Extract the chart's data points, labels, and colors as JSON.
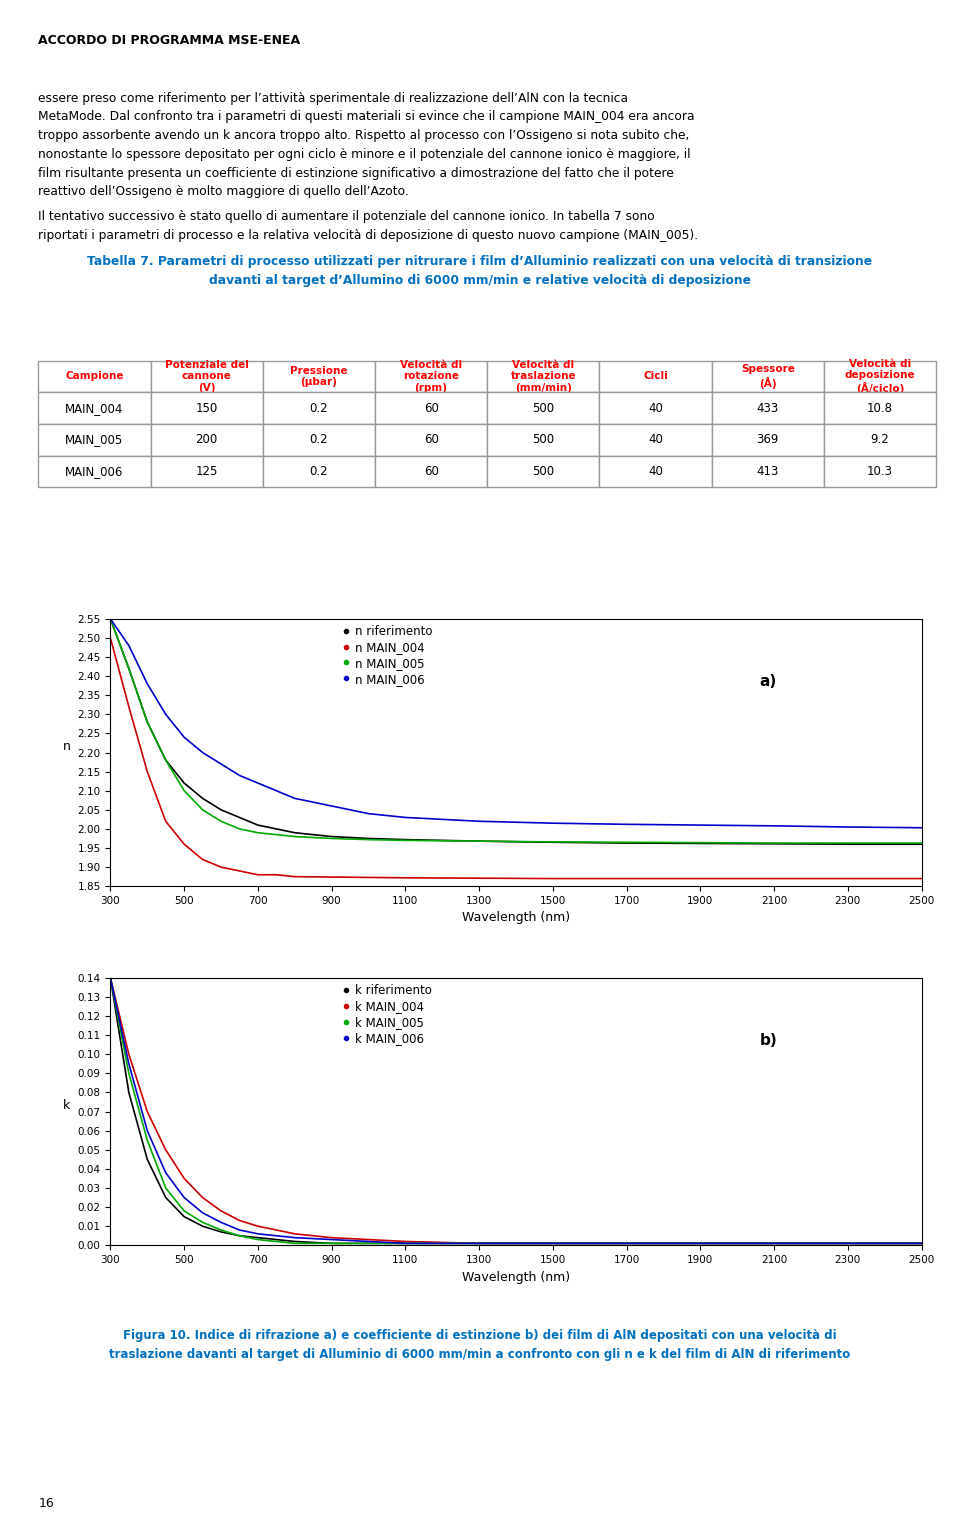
{
  "header": "ACCORDO DI PROGRAMMA MSE-ENEA",
  "paragraph1_lines": [
    "essere preso come riferimento per l’attività sperimentale di realizzazione dell’AlN con la tecnica",
    "MetaMode. Dal confronto tra i parametri di questi materiali si evince che il campione MAIN_004 era ancora",
    "troppo assorbente avendo un k ancora troppo alto. Rispetto al processo con l’Ossigeno si nota subito che,",
    "nonostante lo spessore depositato per ogni ciclo è minore e il potenziale del cannone ionico è maggiore, il",
    "film risultante presenta un coefficiente di estinzione significativo a dimostrazione del fatto che il potere",
    "reattivo dell’Ossigeno è molto maggiore di quello dell’Azoto."
  ],
  "paragraph2_lines": [
    "Il tentativo successivo è stato quello di aumentare il potenziale del cannone ionico. In tabella 7 sono",
    "riportati i parametri di processo e la relativa velocità di deposizione di questo nuovo campione (MAIN_005)."
  ],
  "table_title_lines": [
    "Tabella 7. Parametri di processo utilizzati per nitrurare i film d’Alluminio realizzati con una velocità di transizione",
    "davanti al target d’Allumino di 6000 mm/min e relative velocità di deposizione"
  ],
  "table_col_headers": [
    "Campione",
    "Potenziale del\ncannone\n(V)",
    "Pressione\n(μbar)",
    "Velocità di\nrotazione\n(rpm)",
    "Velocità di\ntraslazione\n(mm/min)",
    "Cicli",
    "Spessore\n(Å)",
    "Velocità di\ndeposizione\n(Å/ciclo)"
  ],
  "table_data": [
    [
      "MAIN_004",
      "150",
      "0.2",
      "60",
      "500",
      "40",
      "433",
      "10.8"
    ],
    [
      "MAIN_005",
      "200",
      "0.2",
      "60",
      "500",
      "40",
      "369",
      "9.2"
    ],
    [
      "MAIN_006",
      "125",
      "0.2",
      "60",
      "500",
      "40",
      "413",
      "10.3"
    ]
  ],
  "fig_caption_lines": [
    "Figura 10. Indice di rifrazione a) e coefficiente di estinzione b) dei film di AlN depositati con una velocità di",
    "traslazione davanti al target di Alluminio di 6000 mm/min a confronto con gli n e k del film di AlN di riferimento"
  ],
  "page_number": "16",
  "header_color": "#000000",
  "table_header_color": "#ff0000",
  "table_title_color": "#0070c0",
  "fig_caption_color": "#0070c0",
  "wavelength_n": [
    300,
    350,
    400,
    450,
    500,
    550,
    600,
    650,
    700,
    750,
    800,
    900,
    1000,
    1100,
    1300,
    1500,
    1700,
    1900,
    2100,
    2300,
    2500
  ],
  "n_riferimento": [
    2.55,
    2.42,
    2.28,
    2.18,
    2.12,
    2.08,
    2.05,
    2.03,
    2.01,
    2.0,
    1.99,
    1.98,
    1.975,
    1.972,
    1.968,
    1.965,
    1.963,
    1.962,
    1.961,
    1.96,
    1.96
  ],
  "n_main004": [
    2.5,
    2.32,
    2.15,
    2.02,
    1.96,
    1.92,
    1.9,
    1.89,
    1.88,
    1.88,
    1.875,
    1.874,
    1.873,
    1.872,
    1.871,
    1.87,
    1.87,
    1.87,
    1.87,
    1.87,
    1.87
  ],
  "n_main005": [
    2.55,
    2.42,
    2.28,
    2.18,
    2.1,
    2.05,
    2.02,
    2.0,
    1.99,
    1.985,
    1.98,
    1.975,
    1.972,
    1.97,
    1.968,
    1.966,
    1.965,
    1.964,
    1.963,
    1.963,
    1.963
  ],
  "n_main006": [
    2.55,
    2.48,
    2.38,
    2.3,
    2.24,
    2.2,
    2.17,
    2.14,
    2.12,
    2.1,
    2.08,
    2.06,
    2.04,
    2.03,
    2.02,
    2.015,
    2.012,
    2.01,
    2.008,
    2.005,
    2.003
  ],
  "wavelength_k": [
    300,
    350,
    400,
    450,
    500,
    550,
    600,
    650,
    700,
    750,
    800,
    900,
    1000,
    1100,
    1300,
    1500,
    1700,
    1900,
    2100,
    2300,
    2500
  ],
  "k_riferimento": [
    0.14,
    0.08,
    0.045,
    0.025,
    0.015,
    0.01,
    0.007,
    0.005,
    0.004,
    0.003,
    0.002,
    0.001,
    0.001,
    0.001,
    0.001,
    0.001,
    0.001,
    0.001,
    0.001,
    0.001,
    0.001
  ],
  "k_main004": [
    0.14,
    0.1,
    0.07,
    0.05,
    0.035,
    0.025,
    0.018,
    0.013,
    0.01,
    0.008,
    0.006,
    0.004,
    0.003,
    0.002,
    0.001,
    0.001,
    0.001,
    0.001,
    0.001,
    0.001,
    0.001
  ],
  "k_main005": [
    0.14,
    0.09,
    0.055,
    0.03,
    0.018,
    0.012,
    0.008,
    0.005,
    0.003,
    0.002,
    0.001,
    0.001,
    0.001,
    0.001,
    0.001,
    0.001,
    0.001,
    0.001,
    0.001,
    0.001,
    0.001
  ],
  "k_main006": [
    0.14,
    0.095,
    0.06,
    0.038,
    0.025,
    0.017,
    0.012,
    0.008,
    0.006,
    0.005,
    0.004,
    0.003,
    0.002,
    0.001,
    0.001,
    0.001,
    0.001,
    0.001,
    0.001,
    0.001,
    0.001
  ],
  "line_colors": [
    "#000000",
    "#cc0000",
    "#00aa00",
    "#0000cc"
  ],
  "n_ylim": [
    1.85,
    2.55
  ],
  "n_yticks": [
    1.85,
    1.9,
    1.95,
    2.0,
    2.05,
    2.1,
    2.15,
    2.2,
    2.25,
    2.3,
    2.35,
    2.4,
    2.45,
    2.5,
    2.55
  ],
  "k_ylim": [
    0.0,
    0.14
  ],
  "k_yticks": [
    0.0,
    0.01,
    0.02,
    0.03,
    0.04,
    0.05,
    0.06,
    0.07,
    0.08,
    0.09,
    0.1,
    0.11,
    0.12,
    0.13,
    0.14
  ],
  "x_ticks": [
    300,
    500,
    700,
    900,
    1100,
    1300,
    1500,
    1700,
    1900,
    2100,
    2300,
    2500
  ],
  "legend_n": [
    "n riferimento",
    "n MAIN_004",
    "n MAIN_005",
    "n MAIN_006"
  ],
  "legend_k": [
    "k riferimento",
    "k MAIN_004",
    "k MAIN_005",
    "k MAIN_006"
  ]
}
